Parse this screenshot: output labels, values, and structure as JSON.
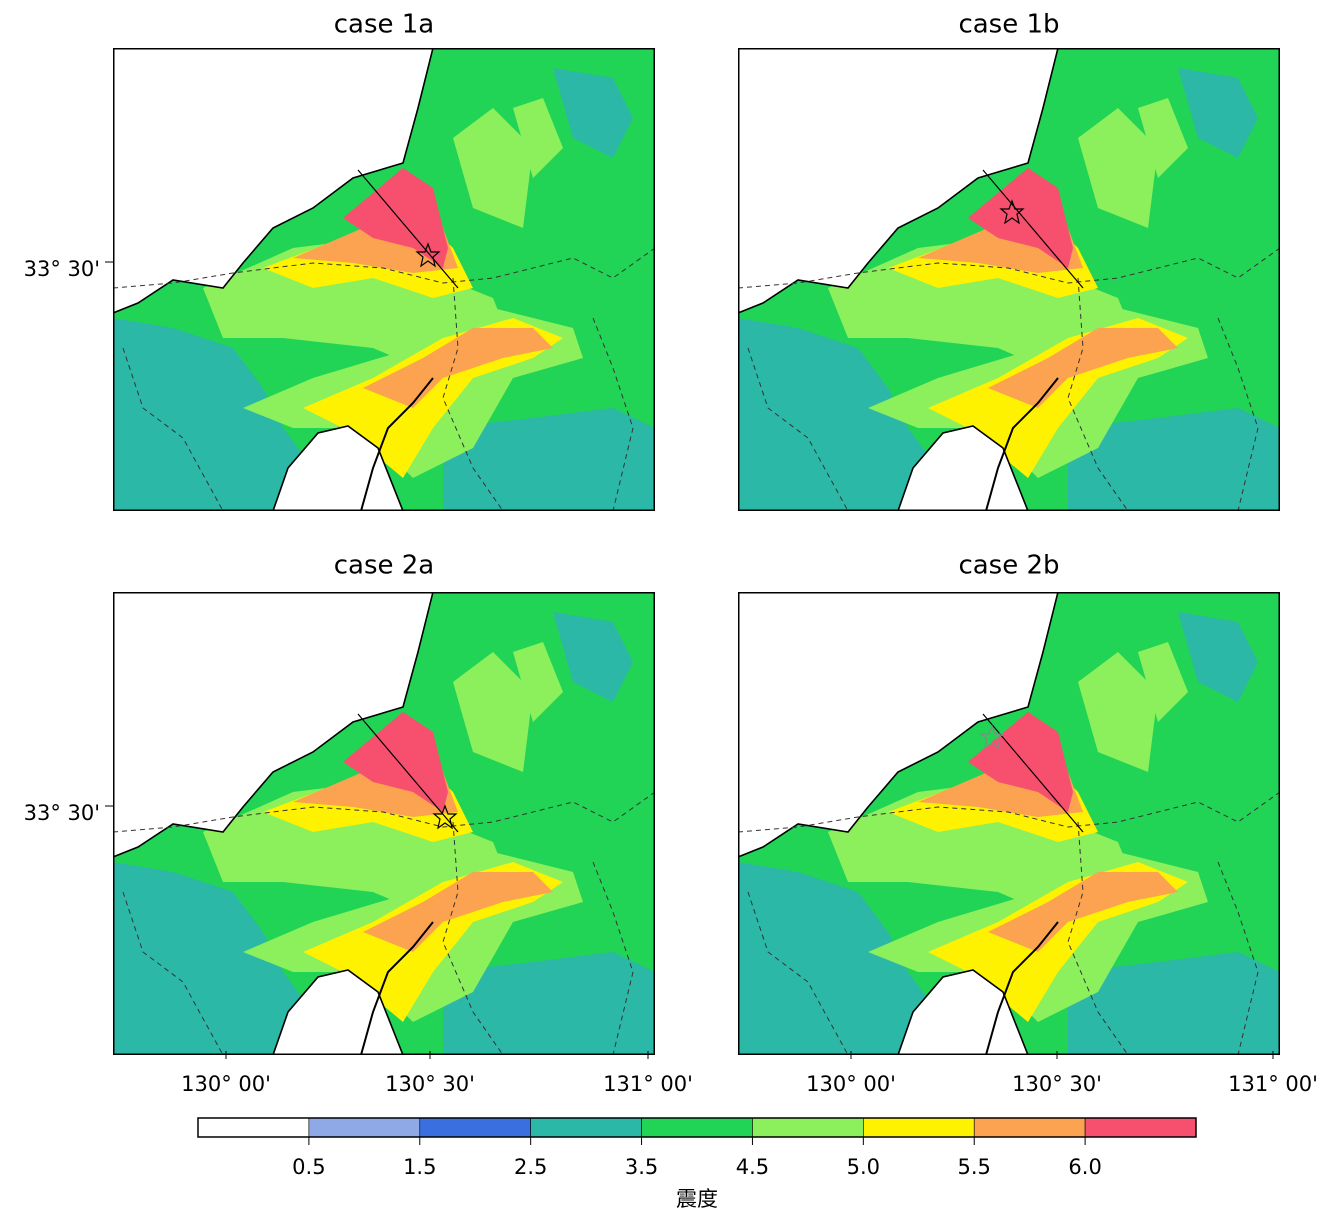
{
  "panels": [
    {
      "title": "case 1a"
    },
    {
      "title": "case 1b"
    },
    {
      "title": "case 2a"
    },
    {
      "title": "case 2b"
    }
  ],
  "latitude_label": "33° 30'",
  "longitude_labels": [
    "130° 00'",
    "130° 30'",
    "131° 00'"
  ],
  "colorbar": {
    "title": "震度",
    "colors": [
      "#ffffff",
      "#8fa8e6",
      "#3a6fe0",
      "#2bb8a6",
      "#22d455",
      "#8cf05c",
      "#fff200",
      "#fba350",
      "#f6506e"
    ],
    "ticks": [
      0.5,
      1.5,
      2.5,
      3.5,
      4.5,
      {
        "value": 5,
        "label": "5.0"
      },
      5.5,
      {
        "value": 6,
        "label": "6.0"
      }
    ]
  }
}
